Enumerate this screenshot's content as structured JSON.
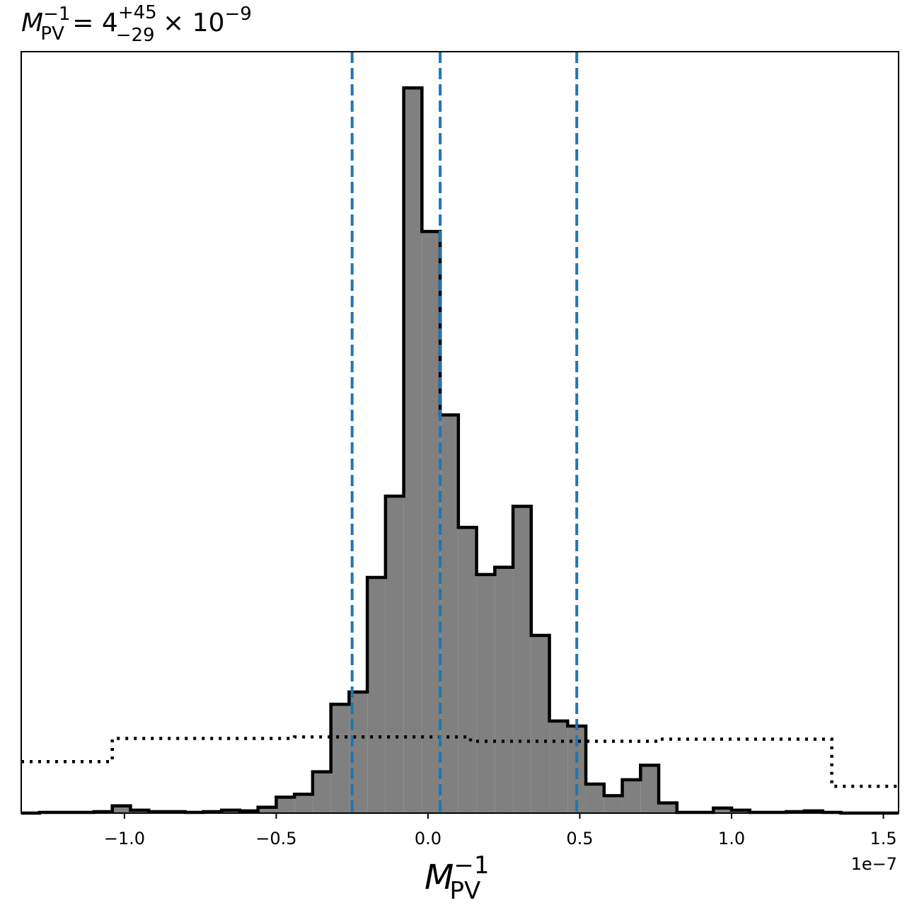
{
  "chart_data": {
    "type": "histogram",
    "title": {
      "symbol": "M",
      "subscript": "PV",
      "superscript": "−1",
      "equals": " = 4",
      "value_upper": "+45",
      "value_lower": "−29",
      "multiplier": " × 10",
      "exponent": "−9"
    },
    "xlabel": {
      "symbol": "M",
      "subscript": "PV",
      "superscript": "−1"
    },
    "offset_label": "1e−7",
    "xlim": [
      -1.34,
      1.55
    ],
    "ylim": [
      0,
      1.05
    ],
    "x_scale_factor": 1e-07,
    "xticks": [
      {
        "value": -1.0,
        "label": "−1.0"
      },
      {
        "value": -0.5,
        "label": "−0.5"
      },
      {
        "value": 0.0,
        "label": "0.0"
      },
      {
        "value": 0.5,
        "label": "0.5"
      },
      {
        "value": 1.0,
        "label": "1.0"
      },
      {
        "value": 1.5,
        "label": "1.5"
      }
    ],
    "posterior": {
      "color": "#808080",
      "edge_color": "#000000",
      "bin_edges": [
        -1.34,
        -1.28,
        -1.22,
        -1.16,
        -1.1,
        -1.04,
        -0.98,
        -0.92,
        -0.86,
        -0.8,
        -0.74,
        -0.68,
        -0.62,
        -0.56,
        -0.5,
        -0.44,
        -0.38,
        -0.32,
        -0.26,
        -0.2,
        -0.14,
        -0.08,
        -0.02,
        0.04,
        0.1,
        0.16,
        0.22,
        0.28,
        0.34,
        0.4,
        0.46,
        0.52,
        0.58,
        0.64,
        0.7,
        0.76,
        0.82,
        0.88,
        0.94,
        1.0,
        1.06,
        1.12,
        1.18,
        1.24,
        1.3,
        1.36,
        1.42,
        1.48,
        1.55
      ],
      "heights": [
        0,
        0.001,
        0.001,
        0.001,
        0.002,
        0.01,
        0.004,
        0.002,
        0.002,
        0.001,
        0.002,
        0.004,
        0.003,
        0.008,
        0.022,
        0.026,
        0.057,
        0.15,
        0.167,
        0.325,
        0.437,
        1.0,
        0.802,
        0.549,
        0.394,
        0.329,
        0.339,
        0.423,
        0.245,
        0.127,
        0.12,
        0.04,
        0.024,
        0.046,
        0.066,
        0.014,
        0.001,
        0.001,
        0.007,
        0.004,
        0.001,
        0.001,
        0.002,
        0.003,
        0.001,
        0,
        0,
        0
      ]
    },
    "prior": {
      "style": "dotted",
      "color": "#000000",
      "bin_edges": [
        -1.34,
        -1.04,
        -0.44,
        0.14,
        0.76,
        1.33,
        1.55
      ],
      "heights": [
        0.071,
        0.103,
        0.105,
        0.099,
        0.102,
        0.037
      ]
    },
    "quantile_lines": {
      "color": "#1f77b4",
      "style": "dashed",
      "values": [
        -0.25,
        0.04,
        0.49
      ]
    },
    "grid": false,
    "legend": "none"
  }
}
